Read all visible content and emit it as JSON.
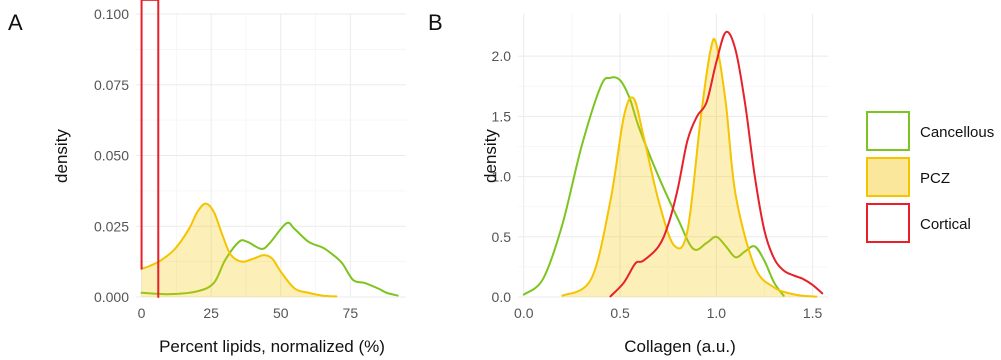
{
  "chart_data": [
    {
      "type": "area",
      "panel": "A",
      "xlabel": "Percent lipids, normalized (%)",
      "ylabel": "density",
      "xlim": [
        -2,
        95
      ],
      "ylim": [
        0,
        0.1
      ],
      "xticks": [
        0,
        25,
        50,
        75
      ],
      "yticks": [
        0.0,
        0.025,
        0.05,
        0.075,
        0.1
      ],
      "ytick_labels": [
        "0.000",
        "0.025",
        "0.050",
        "0.075",
        "0.100"
      ],
      "grid": true,
      "series": [
        {
          "key": "Cancellous",
          "color": "#7cc41f",
          "fill": false,
          "x": [
            0,
            10,
            20,
            26,
            30,
            35,
            38,
            43,
            46,
            52,
            55,
            60,
            65,
            68,
            72,
            76,
            80,
            85,
            88,
            92
          ],
          "y": [
            0.0015,
            0.001,
            0.002,
            0.005,
            0.013,
            0.0195,
            0.0195,
            0.017,
            0.019,
            0.026,
            0.024,
            0.0195,
            0.0175,
            0.0155,
            0.012,
            0.006,
            0.005,
            0.003,
            0.0015,
            0.0005
          ]
        },
        {
          "key": "PCZ",
          "color": "#f5c400",
          "fill": true,
          "x": [
            0,
            3,
            7,
            12,
            17,
            20,
            23,
            26,
            29,
            32,
            36,
            40,
            44,
            47,
            50,
            55,
            60,
            65,
            70
          ],
          "y": [
            0.01,
            0.011,
            0.013,
            0.017,
            0.024,
            0.03,
            0.033,
            0.03,
            0.022,
            0.015,
            0.0125,
            0.0135,
            0.0148,
            0.0135,
            0.009,
            0.003,
            0.0015,
            0.0005,
            0.0002
          ]
        },
        {
          "key": "Cortical",
          "color": "#e8202a",
          "fill": false,
          "x": [
            0,
            0,
            6,
            6
          ],
          "y": [
            0.01,
            0.105,
            0.105,
            0.0
          ]
        }
      ]
    },
    {
      "type": "area",
      "panel": "B",
      "xlabel": "Collagen (a.u.)",
      "ylabel": "density",
      "xlim": [
        -0.03,
        1.58
      ],
      "ylim": [
        0,
        2.35
      ],
      "xticks": [
        0.0,
        0.5,
        1.0,
        1.5
      ],
      "xtick_labels": [
        "0.0",
        "0.5",
        "1.0",
        "1.5"
      ],
      "yticks": [
        0.0,
        0.5,
        1.0,
        1.5,
        2.0
      ],
      "ytick_labels": [
        "0.0",
        "0.5",
        "1.0",
        "1.5",
        "2.0"
      ],
      "grid": true,
      "series": [
        {
          "key": "Cancellous",
          "color": "#7cc41f",
          "fill": false,
          "x": [
            0.0,
            0.1,
            0.2,
            0.3,
            0.4,
            0.45,
            0.5,
            0.55,
            0.6,
            0.7,
            0.8,
            0.88,
            0.95,
            1.0,
            1.05,
            1.1,
            1.15,
            1.2,
            1.25,
            1.3,
            1.35
          ],
          "y": [
            0.02,
            0.15,
            0.6,
            1.25,
            1.75,
            1.82,
            1.8,
            1.65,
            1.4,
            1.0,
            0.65,
            0.4,
            0.45,
            0.5,
            0.42,
            0.33,
            0.38,
            0.42,
            0.3,
            0.12,
            0.01
          ]
        },
        {
          "key": "PCZ",
          "color": "#f5c400",
          "fill": true,
          "x": [
            0.2,
            0.35,
            0.45,
            0.52,
            0.57,
            0.62,
            0.7,
            0.78,
            0.85,
            0.92,
            0.97,
            1.0,
            1.05,
            1.1,
            1.2,
            1.3,
            1.38,
            1.45,
            1.52
          ],
          "y": [
            0.01,
            0.15,
            0.8,
            1.5,
            1.65,
            1.35,
            0.8,
            0.43,
            0.55,
            1.5,
            2.05,
            2.1,
            1.6,
            0.85,
            0.25,
            0.08,
            0.03,
            0.01,
            0.003
          ]
        },
        {
          "key": "Cortical",
          "color": "#e8202a",
          "fill": false,
          "x": [
            0.45,
            0.52,
            0.58,
            0.62,
            0.7,
            0.75,
            0.8,
            0.85,
            0.9,
            0.95,
            1.0,
            1.05,
            1.1,
            1.15,
            1.2,
            1.25,
            1.3,
            1.35,
            1.4,
            1.45,
            1.5,
            1.55
          ],
          "y": [
            0.005,
            0.12,
            0.28,
            0.3,
            0.42,
            0.6,
            0.9,
            1.3,
            1.5,
            1.62,
            1.95,
            2.2,
            2.05,
            1.6,
            1.0,
            0.55,
            0.32,
            0.22,
            0.18,
            0.15,
            0.1,
            0.03
          ]
        }
      ]
    }
  ],
  "panels": {
    "a": {
      "tag": "A"
    },
    "b": {
      "tag": "B"
    }
  },
  "legend": {
    "placement": "right",
    "entries": [
      {
        "key": "Cancellous",
        "label": "Cancellous",
        "color": "#7cc41f",
        "fill": "#ffffff"
      },
      {
        "key": "PCZ",
        "label": "PCZ",
        "color": "#f5c400",
        "fill": "#fbe79b"
      },
      {
        "key": "Cortical",
        "label": "Cortical",
        "color": "#e8202a",
        "fill": "#ffffff"
      }
    ]
  }
}
